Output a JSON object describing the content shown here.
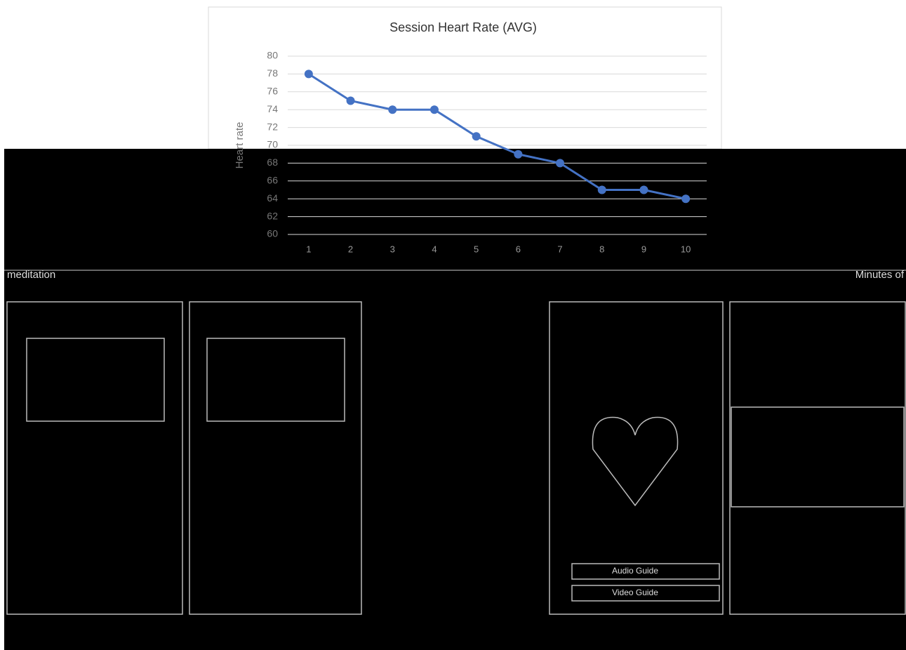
{
  "chart_data": {
    "type": "line",
    "title": "Session Heart Rate (AVG)",
    "y_label": "Heart rate",
    "categories": [
      "1",
      "2",
      "3",
      "4",
      "5",
      "6",
      "7",
      "8",
      "9",
      "10"
    ],
    "values": [
      78,
      75,
      74,
      74,
      71,
      69,
      68,
      65,
      65,
      64
    ],
    "color": "#4472c4",
    "ylim": [
      60,
      80
    ],
    "yticks": [
      60,
      62,
      64,
      66,
      68,
      70,
      72,
      74,
      76,
      78,
      80
    ],
    "grid": true
  },
  "screen": {
    "left_label": "meditation",
    "right_label": "Minutes of",
    "button_1": "Audio Guide",
    "button_2": "Video Guide"
  }
}
